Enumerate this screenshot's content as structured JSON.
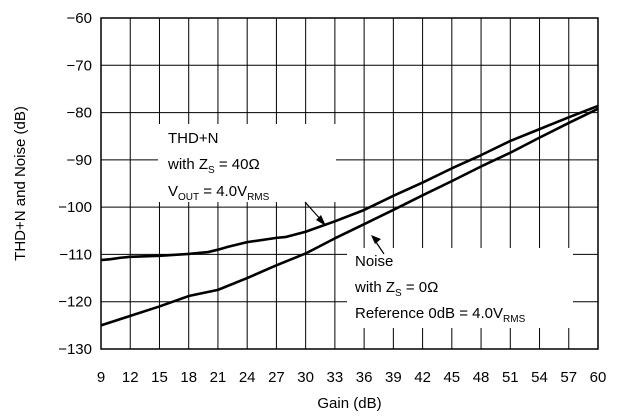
{
  "chart_data": {
    "type": "line",
    "title": "",
    "xlabel": "Gain (dB)",
    "ylabel": "THD+N and Noise (dB)",
    "xlim": [
      9,
      60
    ],
    "ylim": [
      -130,
      -60
    ],
    "xticks": [
      9,
      12,
      15,
      18,
      21,
      24,
      27,
      30,
      33,
      36,
      39,
      42,
      45,
      48,
      51,
      54,
      57,
      60
    ],
    "yticks": [
      -60,
      -70,
      -80,
      -90,
      -100,
      -110,
      -120,
      -130
    ],
    "xtick_labels": [
      "9",
      "12",
      "15",
      "18",
      "21",
      "24",
      "27",
      "30",
      "33",
      "36",
      "39",
      "42",
      "45",
      "48",
      "51",
      "54",
      "57",
      "60"
    ],
    "ytick_labels": [
      "−60",
      "−70",
      "−80",
      "−90",
      "−100",
      "−110",
      "−120",
      "−130"
    ],
    "grid": true,
    "series": [
      {
        "key": "thdn",
        "x": [
          9,
          10,
          11,
          12,
          15,
          18,
          20,
          21,
          22,
          24,
          27,
          28,
          30,
          33,
          36,
          39,
          42,
          45,
          48,
          51,
          54,
          57,
          60
        ],
        "y": [
          -111.2,
          -111,
          -110.7,
          -110.5,
          -110.3,
          -109.9,
          -109.5,
          -109,
          -108.4,
          -107.4,
          -106.5,
          -106.3,
          -105.2,
          -103,
          -100.6,
          -97.6,
          -94.8,
          -91.8,
          -89,
          -86,
          -83.5,
          -81,
          -78.6
        ]
      },
      {
        "key": "noise",
        "x": [
          9,
          12,
          15,
          18,
          21,
          24,
          27,
          30,
          33,
          36,
          39,
          42,
          45,
          48,
          51,
          54,
          57,
          60
        ],
        "y": [
          -125,
          -123,
          -121,
          -118.8,
          -117.5,
          -115,
          -112.3,
          -109.8,
          -106.6,
          -103.6,
          -100.6,
          -97.5,
          -94.5,
          -91.4,
          -88.5,
          -85.3,
          -82.2,
          -79.2
        ]
      }
    ],
    "annotations": {
      "thdn": {
        "line1": "THD+N",
        "line2_pre": "with Z",
        "line2_sub": "S",
        "line2_post": " = 40Ω",
        "line3_pre": "V",
        "line3_sub": "OUT",
        "line3_mid": " = 4.0V",
        "line3_sub2": "RMS"
      },
      "noise": {
        "line1": "Noise",
        "line2_pre": "with Z",
        "line2_sub": "S",
        "line2_post": " = 0Ω",
        "line3_pre": "Reference 0dB = 4.0V",
        "line3_sub": "RMS"
      }
    }
  }
}
